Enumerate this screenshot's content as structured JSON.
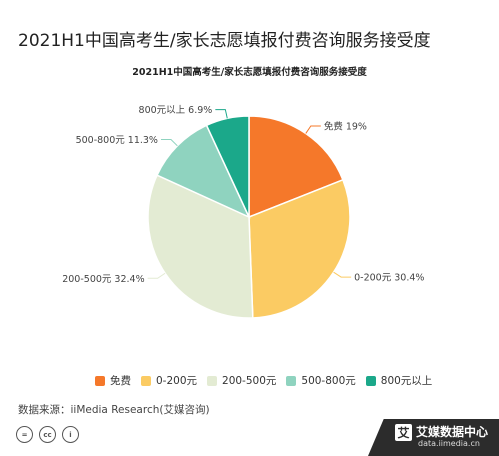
{
  "header": {
    "title": "2021H1中国高考生/家长志愿填报付费咨询服务接受度"
  },
  "chart_data": {
    "type": "pie",
    "title": "2021H1中国高考生/家长志愿填报付费咨询服务接受度",
    "categories": [
      "免费",
      "0-200元",
      "200-500元",
      "500-800元",
      "800元以上"
    ],
    "values": [
      19,
      30.4,
      32.4,
      11.3,
      6.9
    ],
    "unit": "%",
    "labels": [
      "免费 19%",
      "0-200元 30.4%",
      "200-500元 32.4%",
      "500-800元 11.3%",
      "800元以上 6.9%"
    ],
    "colors": [
      "#f5782a",
      "#fbcb63",
      "#e3ebd3",
      "#8fd3bf",
      "#1ba88a"
    ],
    "legend_position": "bottom"
  },
  "footer": {
    "source": "数据来源：iiMedia Research(艾媒咨询)",
    "cc_icons": [
      "=",
      "cc",
      "i"
    ],
    "brand_name": "艾媒数据中心",
    "brand_logo": "艾",
    "brand_url": "data.iimedia.cn"
  }
}
